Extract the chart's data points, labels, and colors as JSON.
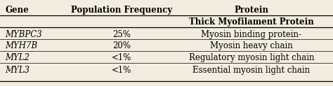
{
  "col_headers": [
    "Gene",
    "Population Frequency",
    "Protein"
  ],
  "sub_header": "Thick Myofilament Protein",
  "rows": [
    [
      "MYBPC3",
      "25%",
      "Myosin binding protein-"
    ],
    [
      "MYH7B",
      "20%",
      "Myosin heavy chain"
    ],
    [
      "MYL2",
      "<1%",
      "Regulatory myosin light chain"
    ],
    [
      "MYL3",
      "<1%",
      "Essential myosin light chain"
    ]
  ],
  "background_color": "#f2ede0",
  "header_fontsize": 8.5,
  "cell_fontsize": 8.5,
  "figsize": [
    4.74,
    1.23
  ],
  "dpi": 100
}
